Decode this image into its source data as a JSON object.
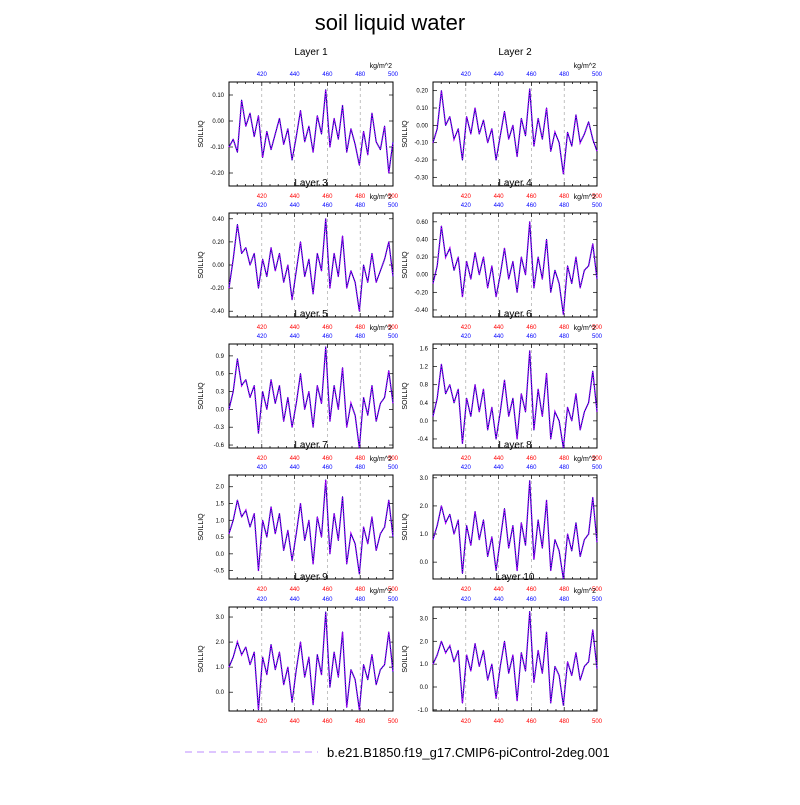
{
  "title": "soil liquid water",
  "legend_label": "b.e21.B1850.f19_g17.CMIP6-piControl-2deg.001",
  "colors": {
    "axis_bottom": "#ff0000",
    "axis_top": "#0000ff",
    "series_dots": "#b700ff",
    "series_line": "#0000a0",
    "legend_line": "#c9a4ff",
    "grid": "#9a9a9a"
  },
  "chart_data": [
    {
      "type": "line",
      "title": "Layer 1",
      "ylabel": "SOILLIQ",
      "units": "kg/m^2",
      "xlim": [
        400,
        500
      ],
      "xticks": [
        420,
        440,
        460,
        480,
        500
      ],
      "ylim": [
        -0.25,
        0.15
      ],
      "yticks": [
        -0.2,
        -0.1,
        0.0,
        0.1
      ],
      "ytick_labels": [
        "-0.20",
        "-0.10",
        "0.00",
        "0.10"
      ],
      "grid_x": [
        420,
        440,
        460,
        480
      ],
      "series": [
        {
          "values": [
            -0.1,
            -0.07,
            -0.12,
            0.08,
            -0.02,
            0.03,
            -0.06,
            0.02,
            -0.14,
            -0.04,
            -0.11,
            -0.05,
            0.01,
            -0.09,
            -0.03,
            -0.15,
            -0.06,
            0.04,
            -0.08,
            -0.02,
            -0.12,
            0.02,
            -0.05,
            0.12,
            -0.1,
            0.01,
            -0.07,
            0.06,
            -0.12,
            -0.03,
            -0.09,
            -0.17,
            -0.04,
            -0.13,
            0.03,
            -0.08,
            -0.11,
            -0.02,
            -0.2,
            -0.08
          ]
        }
      ]
    },
    {
      "type": "line",
      "title": "Layer 2",
      "ylabel": "SOILLIQ",
      "units": "kg/m^2",
      "xlim": [
        400,
        500
      ],
      "xticks": [
        420,
        440,
        460,
        480,
        500
      ],
      "ylim": [
        -0.35,
        0.25
      ],
      "yticks": [
        -0.3,
        -0.2,
        -0.1,
        0.0,
        0.1,
        0.2
      ],
      "ytick_labels": [
        "-0.30",
        "-0.20",
        "-0.10",
        "0.00",
        "0.10",
        "0.20"
      ],
      "grid_x": [
        420,
        440,
        460,
        480
      ],
      "series": [
        {
          "values": [
            -0.1,
            -0.02,
            0.2,
            0.0,
            0.05,
            -0.08,
            -0.02,
            -0.2,
            0.05,
            -0.05,
            0.1,
            -0.05,
            0.03,
            -0.1,
            -0.02,
            -0.2,
            -0.06,
            0.08,
            -0.08,
            0.0,
            -0.18,
            0.04,
            -0.06,
            0.21,
            -0.12,
            0.04,
            -0.08,
            0.1,
            -0.15,
            -0.04,
            -0.1,
            -0.28,
            -0.04,
            -0.12,
            0.06,
            -0.1,
            -0.05,
            0.02,
            -0.08,
            -0.15
          ]
        }
      ]
    },
    {
      "type": "line",
      "title": "Layer 3",
      "ylabel": "SOILLIQ",
      "units": "kg/m^2",
      "xlim": [
        400,
        500
      ],
      "xticks": [
        420,
        440,
        460,
        480,
        500
      ],
      "ylim": [
        -0.45,
        0.45
      ],
      "yticks": [
        -0.4,
        -0.2,
        0.0,
        0.2,
        0.4
      ],
      "ytick_labels": [
        "-0.40",
        "-0.20",
        "0.00",
        "0.20",
        "0.40"
      ],
      "grid_x": [
        420,
        440,
        460,
        480
      ],
      "series": [
        {
          "values": [
            -0.2,
            0.05,
            0.35,
            0.1,
            0.15,
            0.0,
            0.1,
            -0.2,
            0.05,
            -0.1,
            0.15,
            -0.05,
            0.1,
            -0.15,
            0.0,
            -0.3,
            -0.05,
            0.2,
            -0.1,
            0.05,
            -0.25,
            0.1,
            -0.05,
            0.4,
            -0.2,
            0.1,
            -0.1,
            0.25,
            -0.2,
            -0.05,
            -0.15,
            -0.4,
            0.0,
            -0.15,
            0.1,
            -0.15,
            -0.05,
            0.05,
            0.2,
            -0.1
          ]
        }
      ]
    },
    {
      "type": "line",
      "title": "Layer 4",
      "ylabel": "SOILLIQ",
      "units": "kg/m^2",
      "xlim": [
        400,
        500
      ],
      "xticks": [
        420,
        440,
        460,
        480,
        500
      ],
      "ylim": [
        -0.48,
        0.7
      ],
      "yticks": [
        -0.4,
        -0.2,
        0.0,
        0.2,
        0.4,
        0.6
      ],
      "ytick_labels": [
        "-0.40",
        "-0.20",
        "0.00",
        "0.20",
        "0.40",
        "0.60"
      ],
      "grid_x": [
        420,
        440,
        460,
        480
      ],
      "series": [
        {
          "values": [
            -0.1,
            0.1,
            0.55,
            0.2,
            0.3,
            0.05,
            0.2,
            -0.25,
            0.15,
            -0.05,
            0.25,
            0.0,
            0.2,
            -0.15,
            0.1,
            -0.25,
            0.0,
            0.3,
            -0.05,
            0.15,
            -0.2,
            0.2,
            0.0,
            0.6,
            -0.15,
            0.2,
            -0.05,
            0.4,
            -0.2,
            0.05,
            -0.1,
            -0.45,
            0.1,
            -0.1,
            0.2,
            -0.15,
            0.05,
            0.1,
            0.35,
            -0.05
          ]
        }
      ]
    },
    {
      "type": "line",
      "title": "Layer 5",
      "ylabel": "SOILLIQ",
      "units": "kg/m^2",
      "xlim": [
        400,
        500
      ],
      "xticks": [
        420,
        440,
        460,
        480,
        500
      ],
      "ylim": [
        -0.65,
        1.1
      ],
      "yticks": [
        -0.6,
        -0.3,
        0.0,
        0.3,
        0.6,
        0.9
      ],
      "ytick_labels": [
        "-0.6",
        "-0.3",
        "0.0",
        "0.3",
        "0.6",
        "0.9"
      ],
      "grid_x": [
        420,
        440,
        460,
        480
      ],
      "series": [
        {
          "values": [
            0.0,
            0.3,
            0.85,
            0.4,
            0.5,
            0.2,
            0.4,
            -0.4,
            0.3,
            0.0,
            0.5,
            0.1,
            0.4,
            -0.2,
            0.2,
            -0.3,
            0.1,
            0.6,
            0.0,
            0.3,
            -0.3,
            0.4,
            0.1,
            1.05,
            -0.2,
            0.4,
            0.0,
            0.7,
            -0.3,
            0.1,
            -0.1,
            -0.65,
            0.2,
            -0.1,
            0.4,
            -0.2,
            0.1,
            0.2,
            0.65,
            0.1
          ]
        }
      ]
    },
    {
      "type": "line",
      "title": "Layer 6",
      "ylabel": "SOILLIQ",
      "units": "kg/m^2",
      "xlim": [
        400,
        500
      ],
      "xticks": [
        420,
        440,
        460,
        480,
        500
      ],
      "ylim": [
        -0.6,
        1.7
      ],
      "yticks": [
        -0.4,
        0.0,
        0.4,
        0.8,
        1.2,
        1.6
      ],
      "ytick_labels": [
        "-0.4",
        "0.0",
        "0.4",
        "0.8",
        "1.2",
        "1.6"
      ],
      "grid_x": [
        420,
        440,
        460,
        480
      ],
      "series": [
        {
          "values": [
            0.1,
            0.5,
            1.25,
            0.6,
            0.8,
            0.4,
            0.7,
            -0.5,
            0.5,
            0.1,
            0.8,
            0.2,
            0.7,
            -0.2,
            0.3,
            -0.4,
            0.2,
            0.9,
            0.1,
            0.5,
            -0.4,
            0.6,
            0.2,
            1.55,
            -0.2,
            0.7,
            0.1,
            1.05,
            -0.4,
            0.2,
            0.0,
            -0.6,
            0.3,
            0.0,
            0.6,
            -0.2,
            0.2,
            0.4,
            1.1,
            0.2
          ]
        }
      ]
    },
    {
      "type": "line",
      "title": "Layer 7",
      "ylabel": "SOILLIQ",
      "units": "kg/m^2",
      "xlim": [
        400,
        500
      ],
      "xticks": [
        420,
        440,
        460,
        480,
        500
      ],
      "ylim": [
        -0.75,
        2.35
      ],
      "yticks": [
        -0.5,
        0.0,
        0.5,
        1.0,
        1.5,
        2.0
      ],
      "ytick_labels": [
        "-0.5",
        "0.0",
        "0.5",
        "1.0",
        "1.5",
        "2.0"
      ],
      "grid_x": [
        420,
        440,
        460,
        480
      ],
      "series": [
        {
          "values": [
            0.6,
            1.0,
            1.6,
            1.1,
            1.3,
            0.8,
            1.2,
            -0.5,
            1.0,
            0.5,
            1.4,
            0.6,
            1.2,
            0.1,
            0.7,
            -0.2,
            0.6,
            1.5,
            0.4,
            1.0,
            -0.3,
            1.1,
            0.5,
            2.2,
            0.0,
            1.2,
            0.4,
            1.7,
            -0.3,
            0.6,
            0.3,
            -0.6,
            0.8,
            0.3,
            1.1,
            0.1,
            0.6,
            0.8,
            1.6,
            0.5
          ]
        }
      ]
    },
    {
      "type": "line",
      "title": "Layer 8",
      "ylabel": "SOILLIQ",
      "units": "kg/m^2",
      "xlim": [
        400,
        500
      ],
      "xticks": [
        420,
        440,
        460,
        480,
        500
      ],
      "ylim": [
        -0.6,
        3.1
      ],
      "yticks": [
        0.0,
        1.0,
        2.0,
        3.0
      ],
      "ytick_labels": [
        "0.0",
        "1.0",
        "2.0",
        "3.0"
      ],
      "grid_x": [
        420,
        440,
        460,
        480
      ],
      "series": [
        {
          "values": [
            0.8,
            1.3,
            2.0,
            1.4,
            1.7,
            1.0,
            1.5,
            -0.4,
            1.3,
            0.6,
            1.8,
            0.8,
            1.5,
            0.2,
            0.9,
            -0.3,
            0.8,
            1.9,
            0.5,
            1.3,
            -0.3,
            1.4,
            0.6,
            2.9,
            0.1,
            1.5,
            0.5,
            2.2,
            -0.3,
            0.8,
            0.4,
            -0.6,
            1.0,
            0.4,
            1.4,
            0.2,
            0.8,
            1.0,
            2.3,
            0.7
          ]
        }
      ]
    },
    {
      "type": "line",
      "title": "Layer 9",
      "ylabel": "SOILLIQ",
      "units": "kg/m^2",
      "xlim": [
        400,
        500
      ],
      "xticks": [
        420,
        440,
        460,
        480,
        500
      ],
      "ylim": [
        -0.75,
        3.4
      ],
      "yticks": [
        0.0,
        1.0,
        2.0,
        3.0
      ],
      "ytick_labels": [
        "0.0",
        "1.0",
        "2.0",
        "3.0"
      ],
      "grid_x": [
        420,
        440,
        460,
        480
      ],
      "series": [
        {
          "values": [
            1.0,
            1.4,
            2.0,
            1.5,
            1.8,
            1.1,
            1.6,
            -0.7,
            1.4,
            0.7,
            1.9,
            0.9,
            1.6,
            0.3,
            1.0,
            -0.4,
            0.9,
            2.0,
            0.6,
            1.4,
            -0.5,
            1.5,
            0.7,
            3.2,
            0.2,
            1.6,
            0.6,
            2.4,
            -0.6,
            0.9,
            0.5,
            -0.7,
            1.1,
            0.5,
            1.5,
            0.3,
            0.9,
            1.1,
            2.4,
            0.8
          ]
        }
      ]
    },
    {
      "type": "line",
      "title": "Layer 10",
      "ylabel": "SOILLIQ",
      "units": "kg/m^2",
      "xlim": [
        400,
        500
      ],
      "xticks": [
        420,
        440,
        460,
        480,
        500
      ],
      "ylim": [
        -1.05,
        3.5
      ],
      "yticks": [
        -1.0,
        0.0,
        1.0,
        2.0,
        3.0
      ],
      "ytick_labels": [
        "-1.0",
        "0.0",
        "1.0",
        "2.0",
        "3.0"
      ],
      "grid_x": [
        420,
        440,
        460,
        480
      ],
      "series": [
        {
          "values": [
            1.0,
            1.4,
            2.0,
            1.5,
            1.8,
            1.1,
            1.6,
            -0.7,
            1.4,
            0.7,
            1.9,
            0.9,
            1.6,
            0.3,
            1.0,
            -0.5,
            0.9,
            2.0,
            0.6,
            1.4,
            -0.6,
            1.5,
            0.7,
            3.3,
            0.2,
            1.6,
            0.6,
            2.4,
            -0.7,
            0.9,
            0.5,
            -0.8,
            1.1,
            0.5,
            1.5,
            0.3,
            0.9,
            1.1,
            2.5,
            0.8
          ]
        }
      ]
    }
  ]
}
